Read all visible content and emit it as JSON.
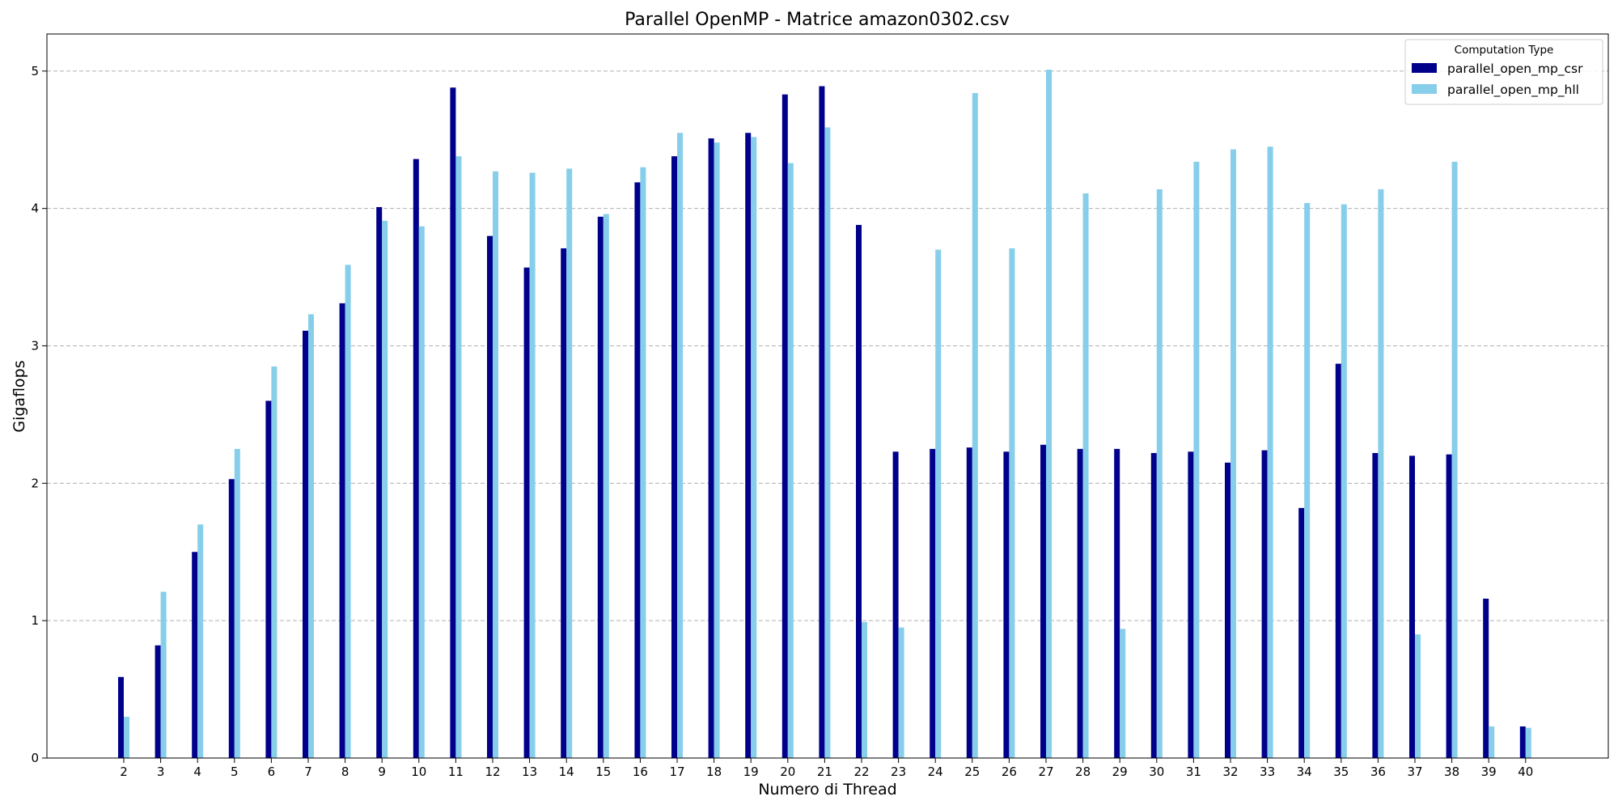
{
  "chart_data": {
    "type": "bar",
    "title": "Parallel OpenMP - Matrice amazon0302.csv",
    "xlabel": "Numero di Thread",
    "ylabel": "Gigaflops",
    "categories": [
      "2",
      "3",
      "4",
      "5",
      "6",
      "7",
      "8",
      "9",
      "10",
      "11",
      "12",
      "13",
      "14",
      "15",
      "16",
      "17",
      "18",
      "19",
      "20",
      "21",
      "22",
      "23",
      "24",
      "25",
      "26",
      "27",
      "28",
      "29",
      "30",
      "31",
      "32",
      "33",
      "34",
      "35",
      "36",
      "37",
      "38",
      "39",
      "40"
    ],
    "series": [
      {
        "name": "parallel_open_mp_csr",
        "color": "#00008b",
        "values": [
          0.59,
          0.82,
          1.5,
          2.03,
          2.6,
          3.11,
          3.31,
          4.01,
          4.36,
          4.88,
          3.8,
          3.57,
          3.71,
          3.94,
          4.19,
          4.38,
          4.51,
          4.55,
          4.83,
          4.89,
          3.88,
          2.23,
          2.25,
          2.26,
          2.23,
          2.28,
          2.25,
          2.25,
          2.22,
          2.23,
          2.15,
          2.24,
          1.82,
          2.87,
          2.22,
          2.2,
          2.21,
          1.16,
          0.23
        ]
      },
      {
        "name": "parallel_open_mp_hll",
        "color": "#87ceeb",
        "values": [
          0.3,
          1.21,
          1.7,
          2.25,
          2.85,
          3.23,
          3.59,
          3.91,
          3.87,
          4.38,
          4.27,
          4.26,
          4.29,
          3.96,
          4.3,
          4.55,
          4.48,
          4.52,
          4.33,
          4.59,
          0.99,
          0.95,
          3.7,
          4.84,
          3.71,
          5.01,
          4.11,
          0.94,
          4.14,
          4.34,
          4.43,
          4.45,
          4.04,
          4.03,
          4.14,
          0.9,
          4.34,
          0.23,
          0.22
        ]
      }
    ],
    "ylim": [
      0,
      5.27
    ],
    "yticks": [
      0,
      1,
      2,
      3,
      4,
      5
    ],
    "grid": "horizontal-dashed",
    "legend": {
      "title": "Computation Type",
      "position": "top-right"
    }
  }
}
